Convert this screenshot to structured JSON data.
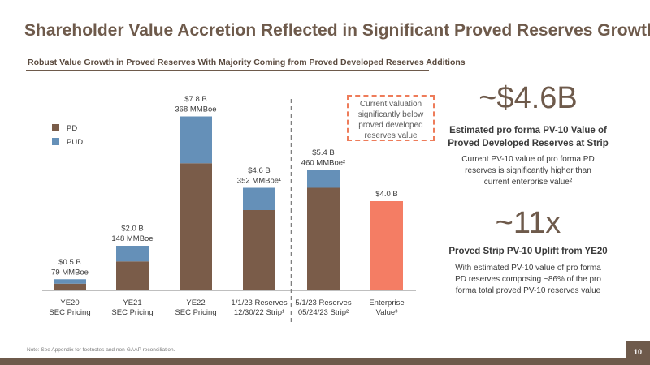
{
  "header": {
    "title": "Shareholder Value Accretion Reflected in Significant Proved Reserves Growth",
    "subtitle": "Robust Value Growth in Proved Reserves With Majority Coming from Proved Developed Reserves Additions"
  },
  "callout": {
    "lines": [
      "Current valuation",
      "significantly below",
      "proved developed",
      "reserves value"
    ]
  },
  "stats": [
    {
      "big": "~$4.6B",
      "head_lines": [
        "Estimated pro forma PV-10 Value of",
        "Proved Developed Reserves at Strip"
      ],
      "body_lines": [
        "Current PV-10 value of pro forma PD",
        "reserves is significantly higher than",
        "current enterprise value²"
      ]
    },
    {
      "big": "~11x",
      "head_lines": [
        "Proved Strip PV-10 Uplift from YE20"
      ],
      "body_lines": [
        "With estimated PV-10 value of pro forma",
        "PD reserves composing ~86% of the pro",
        "forma total proved PV-10 reserves value"
      ]
    }
  ],
  "footnote": "Note: See Appendix for footnotes and non-GAAP reconciliation.",
  "page_number": "10",
  "colors": {
    "pd": "#7a5c49",
    "pud": "#6590b8",
    "enterprise": "#f47d64",
    "brand": "#6e5a4b",
    "divider": "#7f7f7f",
    "callout_border": "#ee7c5a"
  },
  "chart_data": {
    "type": "bar",
    "stacked": true,
    "categories": [
      [
        "YE20",
        "SEC Pricing"
      ],
      [
        "YE21",
        "SEC Pricing"
      ],
      [
        "YE22",
        "SEC Pricing"
      ],
      [
        "1/1/23 Reserves",
        "12/30/22 Strip¹"
      ],
      [
        "5/1/23 Reserves",
        "05/24/23 Strip²"
      ],
      [
        "Enterprise",
        "Value³"
      ]
    ],
    "series": [
      {
        "name": "PD",
        "values": [
          0.3,
          1.3,
          5.7,
          3.6,
          4.6,
          null
        ]
      },
      {
        "name": "PUD",
        "values": [
          0.2,
          0.7,
          2.1,
          1.0,
          0.8,
          null
        ]
      }
    ],
    "enterprise_value": [
      null,
      null,
      null,
      null,
      null,
      4.0
    ],
    "data_labels": [
      [
        "$0.5 B",
        "79 MMBoe"
      ],
      [
        "$2.0 B",
        "148 MMBoe"
      ],
      [
        "$7.8 B",
        "368 MMBoe"
      ],
      [
        "$4.6 B",
        "352 MMBoe¹"
      ],
      [
        "$5.4 B",
        "460 MMBoe²"
      ],
      [
        "$4.0 B"
      ]
    ],
    "legend": [
      "PD",
      "PUD"
    ],
    "legend_position": "top-left",
    "ylim": [
      0,
      8
    ],
    "grid": false,
    "axes_visible": false,
    "divider_between": [
      3,
      4
    ]
  }
}
